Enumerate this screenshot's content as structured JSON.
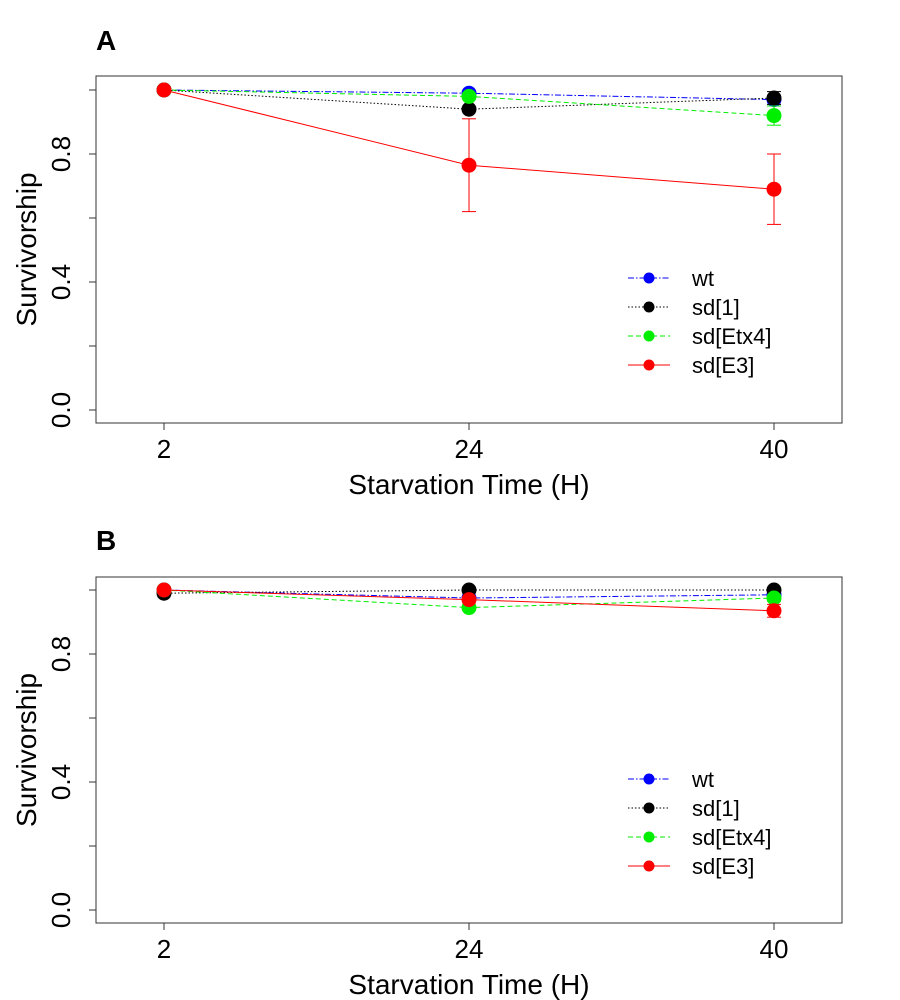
{
  "chart_data": [
    {
      "type": "line",
      "panel_label": "A",
      "xlabel": "Starvation Time (H)",
      "ylabel": "Survivorship",
      "categories": [
        "2",
        "24",
        "40"
      ],
      "y_ticks": [
        "0.0",
        "0.4",
        "0.8"
      ],
      "ylim": [
        0.0,
        1.0
      ],
      "grid": false,
      "legend_position": "bottom-right",
      "series": [
        {
          "name": "wt",
          "color": "#0000ff",
          "dash": "dashdot",
          "values": [
            1.0,
            0.99,
            0.97
          ],
          "err": [
            0,
            0,
            0
          ]
        },
        {
          "name": "sd[1]",
          "color": "#000000",
          "dash": "dotted",
          "values": [
            1.0,
            0.94,
            0.975
          ],
          "err": [
            0,
            0,
            0.02
          ]
        },
        {
          "name": "sd[Etx4]",
          "color": "#00ee00",
          "dash": "dashed",
          "values": [
            1.0,
            0.98,
            0.92
          ],
          "err": [
            0,
            0,
            0.03
          ]
        },
        {
          "name": "sd[E3]",
          "color": "#ff0000",
          "dash": "solid",
          "values": [
            1.0,
            0.765,
            0.69
          ],
          "err": [
            0,
            0.145,
            0.11
          ]
        }
      ]
    },
    {
      "type": "line",
      "panel_label": "B",
      "xlabel": "Starvation Time (H)",
      "ylabel": "Survivorship",
      "categories": [
        "2",
        "24",
        "40"
      ],
      "y_ticks": [
        "0.0",
        "0.4",
        "0.8"
      ],
      "ylim": [
        0.0,
        1.0
      ],
      "grid": false,
      "legend_position": "bottom-right",
      "series": [
        {
          "name": "wt",
          "color": "#0000ff",
          "dash": "dashdot",
          "values": [
            1.0,
            0.975,
            0.985
          ],
          "err": [
            0,
            0,
            0
          ]
        },
        {
          "name": "sd[1]",
          "color": "#000000",
          "dash": "dotted",
          "values": [
            0.99,
            1.0,
            1.0
          ],
          "err": [
            0,
            0,
            0
          ]
        },
        {
          "name": "sd[Etx4]",
          "color": "#00ee00",
          "dash": "dashed",
          "values": [
            1.0,
            0.945,
            0.975
          ],
          "err": [
            0,
            0,
            0.01
          ]
        },
        {
          "name": "sd[E3]",
          "color": "#ff0000",
          "dash": "solid",
          "values": [
            1.0,
            0.97,
            0.935
          ],
          "err": [
            0,
            0,
            0.02
          ]
        }
      ]
    }
  ]
}
